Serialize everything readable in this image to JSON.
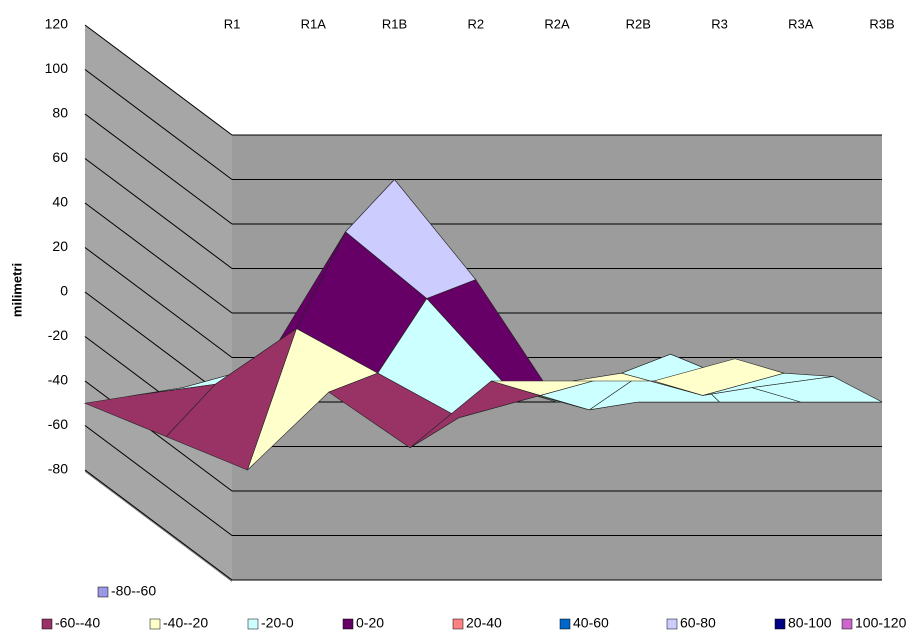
{
  "chart_data": {
    "type": "surface",
    "y_label": "milimetri",
    "categories": [
      "R1",
      "R1A",
      "R1B",
      "R2",
      "R2A",
      "R2B",
      "R3",
      "R3A",
      "R3B"
    ],
    "rows": [
      [
        0,
        0,
        100,
        55,
        0,
        0,
        0,
        0,
        0
      ],
      [
        -10,
        0,
        60,
        30,
        -10,
        -20,
        5,
        -10,
        -5
      ],
      [
        -30,
        -25,
        0,
        -20,
        -40,
        -30,
        -20,
        -30,
        -20
      ],
      [
        -50,
        -65,
        -80,
        -45,
        -70,
        -40,
        -40,
        -40,
        -30
      ]
    ],
    "ylim": [
      -80,
      120
    ],
    "yticks": [
      -80,
      -60,
      -40,
      -20,
      0,
      20,
      40,
      60,
      80,
      100,
      120
    ],
    "grid": true,
    "bands": [
      {
        "label": "-80--60",
        "range": [
          -80,
          -60
        ],
        "color": "#9999e6"
      },
      {
        "label": "-60--40",
        "range": [
          -60,
          -40
        ],
        "color": "#993366"
      },
      {
        "label": "-40--20",
        "range": [
          -40,
          -20
        ],
        "color": "#ffffcc"
      },
      {
        "label": "-20-0",
        "range": [
          -20,
          0
        ],
        "color": "#ccffff"
      },
      {
        "label": "0-20",
        "range": [
          0,
          20
        ],
        "color": "#660066"
      },
      {
        "label": "20-40",
        "range": [
          20,
          40
        ],
        "color": "#ff8080"
      },
      {
        "label": "40-60",
        "range": [
          40,
          60
        ],
        "color": "#0066cc"
      },
      {
        "label": "60-80",
        "range": [
          60,
          80
        ],
        "color": "#ccccff"
      },
      {
        "label": "80-100",
        "range": [
          80,
          100
        ],
        "color": "#000080"
      },
      {
        "label": "100-120",
        "range": [
          100,
          120
        ],
        "color": "#cc66cc"
      }
    ]
  }
}
